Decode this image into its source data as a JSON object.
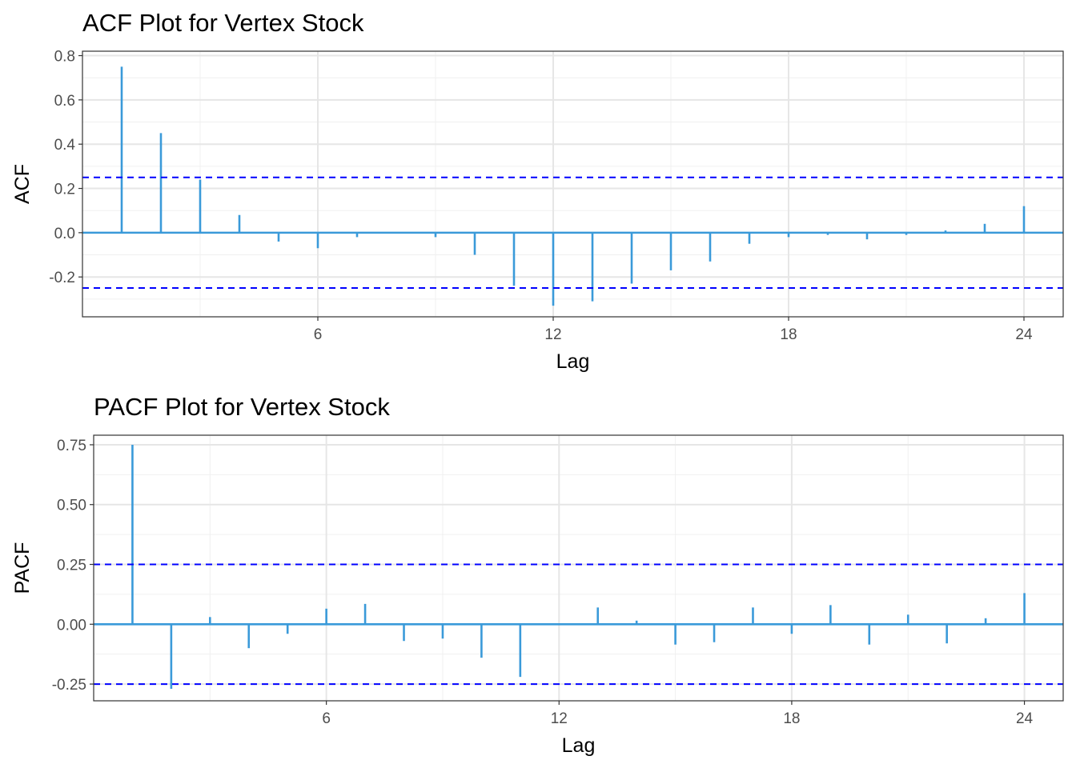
{
  "chart_data": [
    {
      "type": "bar",
      "title": "ACF Plot for Vertex Stock",
      "xlabel": "Lag",
      "ylabel": "ACF",
      "xlim": [
        0,
        25
      ],
      "ylim": [
        -0.38,
        0.82
      ],
      "x_ticks": [
        6,
        12,
        18,
        24
      ],
      "x_tick_labels": [
        "6",
        "12",
        "18",
        "24"
      ],
      "y_ticks": [
        -0.2,
        0.0,
        0.2,
        0.4,
        0.6,
        0.8
      ],
      "y_tick_labels": [
        "-0.2",
        "0.0",
        "0.2",
        "0.4",
        "0.6",
        "0.8"
      ],
      "grid": true,
      "bar_color": "#3a9ad9",
      "ci_color": "#0000ff",
      "confidence_bound": 0.25,
      "lags": [
        1,
        2,
        3,
        4,
        5,
        6,
        7,
        8,
        9,
        10,
        11,
        12,
        13,
        14,
        15,
        16,
        17,
        18,
        19,
        20,
        21,
        22,
        23,
        24
      ],
      "values": [
        0.75,
        0.45,
        0.24,
        0.08,
        -0.04,
        -0.07,
        -0.02,
        0.0,
        -0.02,
        -0.1,
        -0.24,
        -0.33,
        -0.31,
        -0.23,
        -0.17,
        -0.13,
        -0.05,
        -0.02,
        -0.01,
        -0.03,
        -0.01,
        0.01,
        0.04,
        0.12
      ]
    },
    {
      "type": "bar",
      "title": "PACF Plot for Vertex Stock",
      "xlabel": "Lag",
      "ylabel": "PACF",
      "xlim": [
        0,
        25
      ],
      "ylim": [
        -0.32,
        0.79
      ],
      "x_ticks": [
        6,
        12,
        18,
        24
      ],
      "x_tick_labels": [
        "6",
        "12",
        "18",
        "24"
      ],
      "y_ticks": [
        -0.25,
        0.0,
        0.25,
        0.5,
        0.75
      ],
      "y_tick_labels": [
        "-0.25",
        "0.00",
        "0.25",
        "0.50",
        "0.75"
      ],
      "grid": true,
      "bar_color": "#3a9ad9",
      "ci_color": "#0000ff",
      "confidence_bound": 0.25,
      "lags": [
        1,
        2,
        3,
        4,
        5,
        6,
        7,
        8,
        9,
        10,
        11,
        12,
        13,
        14,
        15,
        16,
        17,
        18,
        19,
        20,
        21,
        22,
        23,
        24
      ],
      "values": [
        0.75,
        -0.27,
        0.03,
        -0.1,
        -0.04,
        0.065,
        0.085,
        -0.07,
        -0.06,
        -0.14,
        -0.22,
        0.0,
        0.07,
        0.015,
        -0.085,
        -0.075,
        0.07,
        -0.04,
        0.08,
        -0.085,
        0.04,
        -0.08,
        0.025,
        0.13
      ]
    }
  ]
}
